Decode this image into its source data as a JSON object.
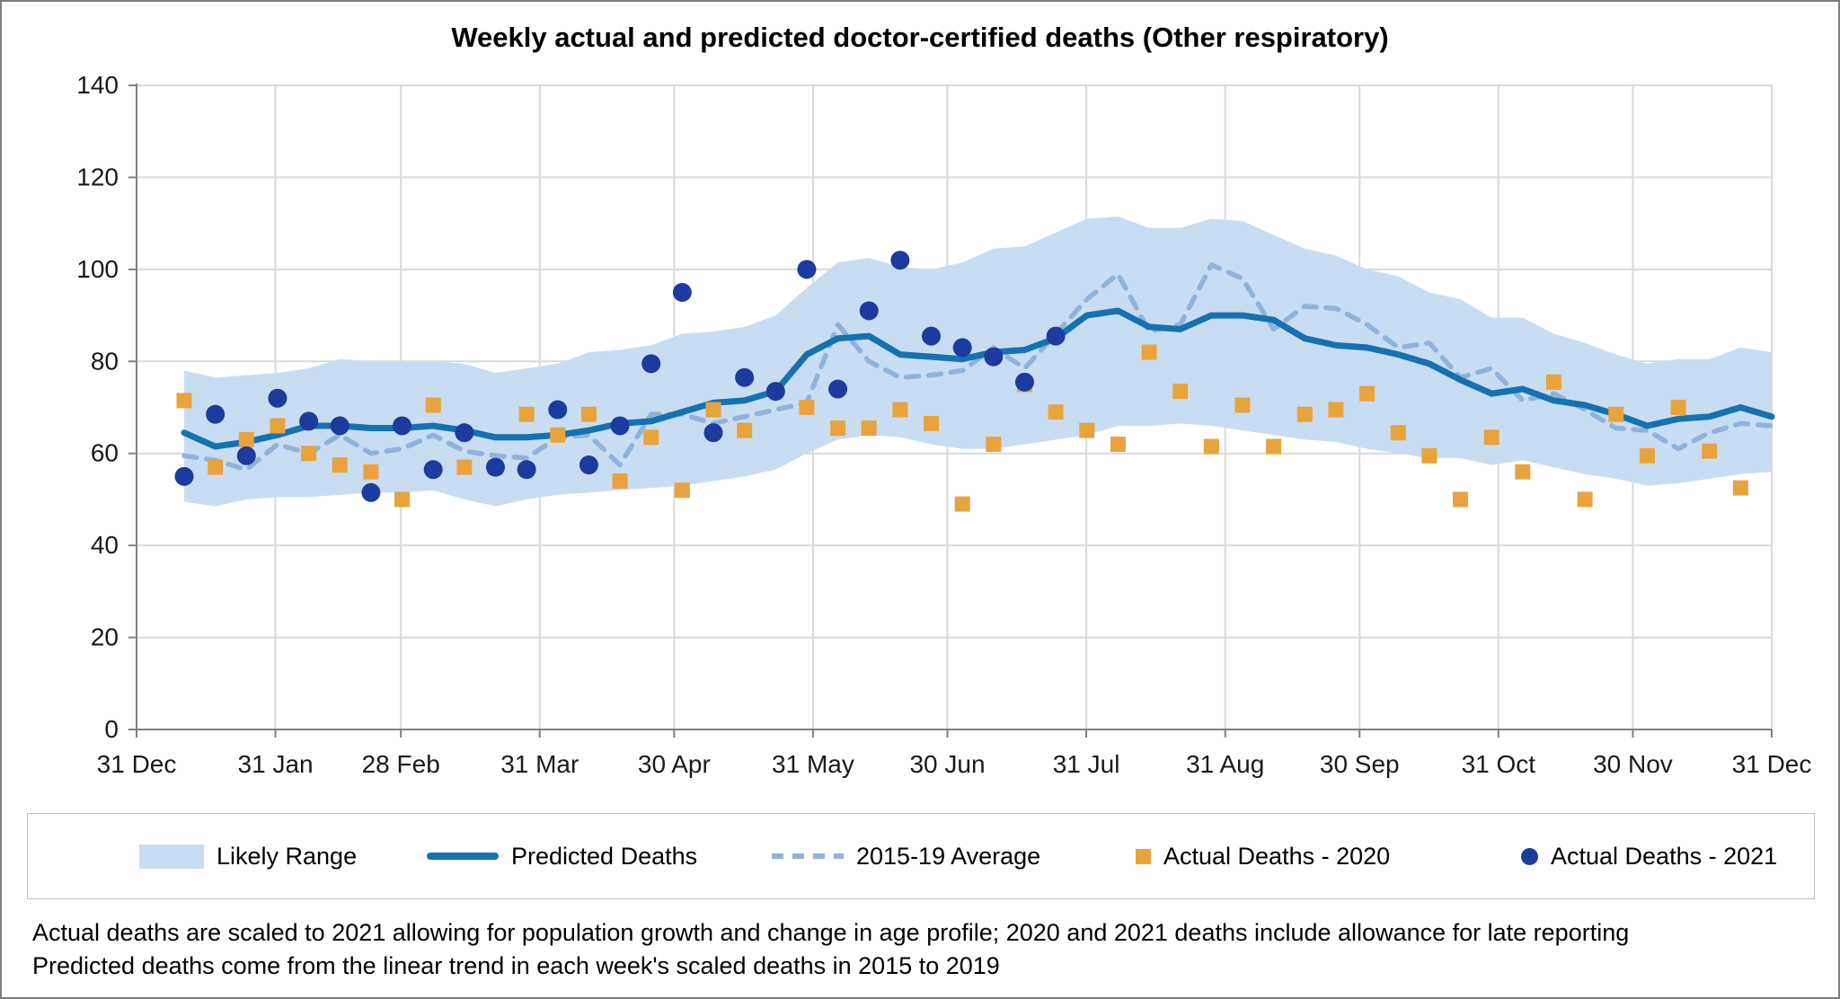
{
  "title": "Weekly actual and predicted doctor-certified deaths (Other respiratory)",
  "legend": {
    "items": [
      {
        "key": "likely_range",
        "label": "Likely Range"
      },
      {
        "key": "predicted",
        "label": "Predicted Deaths"
      },
      {
        "key": "average",
        "label": "2015-19 Average"
      },
      {
        "key": "actual_2020",
        "label": "Actual Deaths - 2020"
      },
      {
        "key": "actual_2021",
        "label": "Actual Deaths - 2021"
      }
    ]
  },
  "footnotes": [
    "Actual deaths are scaled to 2021 allowing for population growth and change in age profile; 2020 and 2021 deaths include allowance for late reporting",
    "Predicted deaths come from the linear trend in each week's scaled deaths in 2015 to 2019"
  ],
  "chart_data": {
    "type": "line",
    "title": "Weekly actual and predicted doctor-certified deaths (Other respiratory)",
    "xlabel": "",
    "ylabel": "",
    "y_range": [
      0,
      140
    ],
    "y_ticks": [
      0,
      20,
      40,
      60,
      80,
      100,
      120,
      140
    ],
    "x_tick_labels": [
      "31 Dec",
      "31 Jan",
      "28 Feb",
      "31 Mar",
      "30 Apr",
      "31 May",
      "30 Jun",
      "31 Jul",
      "31 Aug",
      "30 Sep",
      "31 Oct",
      "30 Nov",
      "31 Dec"
    ],
    "grid": true,
    "legend_position": "bottom",
    "weeks": 52,
    "series": {
      "likely_range_upper": [
        78,
        76.5,
        77,
        77.5,
        78.5,
        80.5,
        80,
        80,
        80,
        79.5,
        77.5,
        78.5,
        79.5,
        82,
        82.5,
        83.5,
        86,
        86.5,
        87.5,
        90,
        96,
        101.5,
        102.5,
        100.5,
        100,
        101.5,
        104.5,
        105,
        108,
        111,
        111.5,
        109,
        109,
        111,
        110.5,
        107.5,
        104.5,
        103,
        100,
        98.5,
        95,
        93.5,
        89.5,
        89.5,
        86,
        84,
        81.5,
        79.5,
        80.5,
        80.5,
        83,
        82
      ],
      "likely_range_lower": [
        49.5,
        48.5,
        50,
        50.5,
        50.5,
        51,
        51.5,
        51.5,
        52,
        50,
        48.5,
        50,
        51,
        51.5,
        52,
        52.5,
        53,
        54,
        55,
        56.5,
        60,
        63,
        64,
        63.5,
        62,
        61,
        61,
        62,
        63,
        64,
        66,
        66,
        66.5,
        66,
        65,
        64,
        63,
        62.5,
        61,
        60,
        59,
        59,
        57.5,
        58.5,
        57,
        55.5,
        54.5,
        53,
        53.5,
        54.5,
        55.5,
        56
      ],
      "predicted_deaths": [
        64.5,
        61.5,
        62.5,
        64,
        66,
        66,
        65.5,
        65.5,
        66,
        65,
        63.5,
        63.5,
        64,
        65,
        66.5,
        67,
        69,
        71,
        71.5,
        73.5,
        81.5,
        85,
        85.5,
        81.5,
        81,
        80.5,
        82,
        82.5,
        85,
        90,
        91,
        87.5,
        87,
        90,
        90,
        89,
        85,
        83.5,
        83,
        81.5,
        79.5,
        76,
        73,
        74,
        71.5,
        70.5,
        68.5,
        66,
        67.5,
        68,
        70,
        68
      ],
      "average_2015_19": [
        59.5,
        58.5,
        56.5,
        62,
        60,
        64,
        60,
        61,
        64,
        60.5,
        59.5,
        59,
        63.5,
        64,
        57.5,
        68.5,
        68.5,
        66.5,
        68,
        69.5,
        71,
        88,
        80,
        76.5,
        77,
        78,
        83,
        78.5,
        86,
        93.5,
        99,
        86.5,
        88,
        101,
        98,
        87,
        92,
        91.5,
        88,
        83,
        84,
        76.5,
        78.5,
        71.5,
        73,
        69.5,
        65.5,
        65,
        61,
        64.5,
        66.5,
        66
      ],
      "actual_deaths_2020": [
        71.5,
        57,
        63,
        66,
        60,
        57.5,
        56,
        50,
        70.5,
        57,
        57,
        68.5,
        64,
        68.5,
        54,
        63.5,
        52,
        69.5,
        65,
        null,
        70,
        65.5,
        65.5,
        69.5,
        66.5,
        49,
        62,
        75,
        69,
        65,
        62,
        82,
        73.5,
        61.5,
        70.5,
        61.5,
        68.5,
        69.5,
        73,
        64.5,
        59.5,
        50,
        63.5,
        56,
        75.5,
        50,
        68.5,
        59.5,
        70,
        60.5,
        52.5,
        null
      ],
      "actual_deaths_2021": [
        55,
        68.5,
        59.5,
        72,
        67,
        66,
        51.5,
        66,
        56.5,
        64.5,
        57,
        56.5,
        69.5,
        57.5,
        66,
        79.5,
        95,
        64.5,
        76.5,
        73.5,
        100,
        74,
        91,
        102,
        85.5,
        83,
        81,
        75.5,
        85.5,
        null,
        null,
        null,
        null,
        null,
        null,
        null,
        null,
        null,
        null,
        null,
        null,
        null,
        null,
        null,
        null,
        null,
        null,
        null,
        null,
        null,
        null,
        null
      ]
    },
    "colors": {
      "band": "#c9ddf2",
      "predicted": "#1572b0",
      "average": "#8fb3da",
      "actual_2020": "#e8a33d",
      "actual_2021": "#1b3c9e",
      "gridline": "#d9d9d9",
      "axis": "#7f7f7f",
      "tick_label": "#1a1a1a"
    }
  }
}
